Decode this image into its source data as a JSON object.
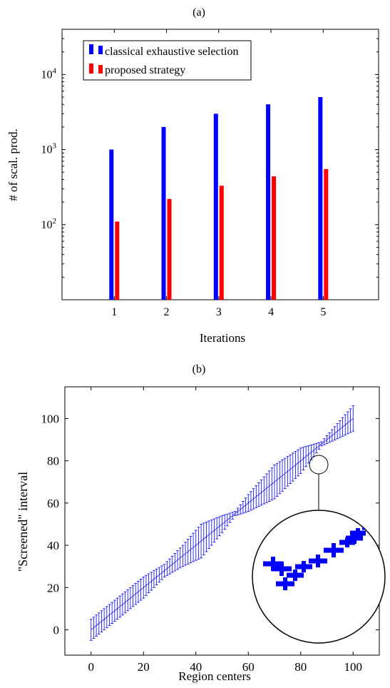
{
  "chart_data": [
    {
      "panel_label": "(a)",
      "type": "bar",
      "categories": [
        "1",
        "2",
        "3",
        "4",
        "5"
      ],
      "series": [
        {
          "name": "classical exhaustive selection",
          "color": "#0000ff",
          "values": [
            1000,
            2000,
            3000,
            4000,
            5000
          ]
        },
        {
          "name": "proposed strategy",
          "color": "#ff0000",
          "values": [
            110,
            220,
            330,
            440,
            550
          ]
        }
      ],
      "xlabel": "Iterations",
      "ylabel": "# of scal. prod.",
      "yscale": "log",
      "ylim": [
        10,
        40000
      ],
      "yticks": [
        100,
        1000,
        10000
      ],
      "ytick_labels": [
        {
          "base": "10",
          "exp": "2"
        },
        {
          "base": "10",
          "exp": "3"
        },
        {
          "base": "10",
          "exp": "4"
        }
      ],
      "legend": "top-left",
      "grid": false
    },
    {
      "panel_label": "(b)",
      "type": "scatter",
      "xlabel": "Region centers",
      "ylabel": "\"Screened\" interval",
      "xlim": [
        -10,
        110
      ],
      "ylim": [
        -12,
        115
      ],
      "xticks": [
        0,
        20,
        40,
        60,
        80,
        100
      ],
      "yticks": [
        0,
        20,
        40,
        60,
        80,
        100
      ],
      "series_color": "#0000ff",
      "x_start": 0,
      "x_end": 100,
      "x_step": 1,
      "error_halfwidth_profile": {
        "description": "half-width of error bar as function of x",
        "knots_x": [
          0,
          10,
          20,
          28,
          35,
          42,
          50,
          55,
          60,
          70,
          80,
          88,
          95,
          100
        ],
        "knots_halfwidth": [
          5,
          5,
          5,
          3,
          5,
          8,
          4,
          1,
          4,
          8,
          6,
          1,
          4,
          6
        ]
      },
      "inset": {
        "type": "zoom",
        "source_center": [
          90,
          90
        ],
        "grid": false
      }
    }
  ]
}
